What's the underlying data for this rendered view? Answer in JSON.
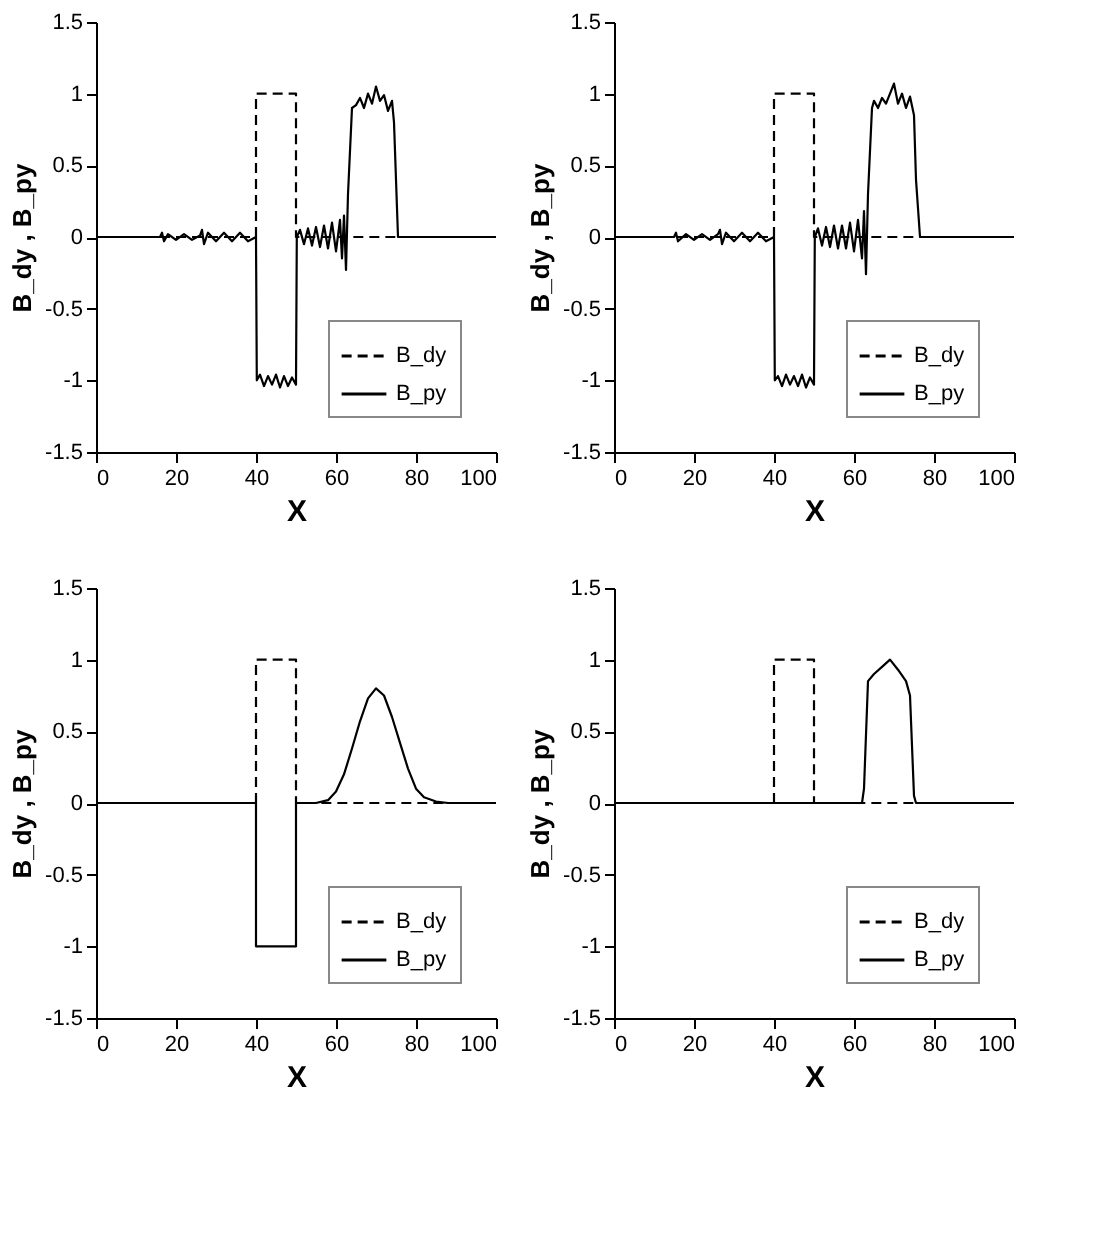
{
  "chart_data": [
    {
      "type": "line",
      "xlabel": "X",
      "ylabel": "B_dy , B_py",
      "xlim": [
        0,
        100
      ],
      "ylim": [
        -1.5,
        1.5
      ],
      "xticks": [
        0,
        20,
        40,
        60,
        80,
        100
      ],
      "yticks": [
        -1.5,
        -1,
        -0.5,
        0,
        0.5,
        1,
        1.5
      ],
      "grid": false,
      "legend": "bottom right",
      "series": [
        {
          "name": "B_dy",
          "color": "#000000",
          "line_style": "dashed",
          "x": [
            0,
            40,
            40,
            50,
            50,
            100
          ],
          "values": [
            0,
            0,
            1,
            1,
            0,
            0
          ]
        },
        {
          "name": "B_py",
          "color": "#000000",
          "line_style": "solid",
          "x": [
            0,
            16,
            16.5,
            17,
            18,
            20,
            22,
            24,
            26,
            26.5,
            27,
            28,
            30,
            32,
            34,
            36,
            38,
            40,
            40.2,
            41,
            42,
            43,
            44,
            45,
            46,
            47,
            48,
            49,
            50,
            50.2,
            51,
            52,
            53,
            54,
            55,
            56,
            57,
            58,
            59,
            60,
            61,
            61.5,
            62,
            62.5,
            63,
            64,
            65,
            66,
            67,
            68,
            69,
            70,
            71,
            72,
            73,
            74,
            74.5,
            75.5,
            100
          ],
          "values": [
            0,
            0,
            0.03,
            -0.03,
            0.02,
            -0.02,
            0.02,
            -0.02,
            0.01,
            0.05,
            -0.05,
            0.03,
            -0.03,
            0.03,
            -0.03,
            0.03,
            -0.03,
            0,
            -1,
            -0.96,
            -1.04,
            -0.97,
            -1.03,
            -0.96,
            -1.05,
            -0.97,
            -1.04,
            -0.98,
            -1.03,
            0,
            0.05,
            -0.05,
            0.06,
            -0.06,
            0.07,
            -0.07,
            0.08,
            -0.08,
            0.1,
            -0.1,
            0.12,
            -0.15,
            0.15,
            -0.23,
            0.3,
            0.9,
            0.92,
            0.97,
            0.9,
            1.0,
            0.93,
            1.05,
            0.95,
            0.99,
            0.88,
            0.95,
            0.8,
            0,
            0
          ]
        }
      ]
    },
    {
      "type": "line",
      "xlabel": "X",
      "ylabel": "B_dy , B_py",
      "xlim": [
        0,
        100
      ],
      "ylim": [
        -1.5,
        1.5
      ],
      "xticks": [
        0,
        20,
        40,
        60,
        80,
        100
      ],
      "yticks": [
        -1.5,
        -1,
        -0.5,
        0,
        0.5,
        1,
        1.5
      ],
      "grid": false,
      "legend": "bottom right",
      "series": [
        {
          "name": "B_dy",
          "color": "#000000",
          "line_style": "dashed",
          "x": [
            0,
            40,
            40,
            50,
            50,
            100
          ],
          "values": [
            0,
            0,
            1,
            1,
            0,
            0
          ]
        },
        {
          "name": "B_py",
          "color": "#000000",
          "line_style": "solid",
          "x": [
            0,
            15,
            15.5,
            16,
            18,
            20,
            22,
            24,
            26,
            26.5,
            27,
            28,
            30,
            32,
            34,
            36,
            38,
            40,
            40.2,
            41,
            42,
            43,
            44,
            45,
            46,
            47,
            48,
            49,
            50,
            50.2,
            51,
            52,
            53,
            54,
            55,
            56,
            57,
            58,
            59,
            60,
            61,
            62,
            62.5,
            63,
            63.5,
            64.5,
            65,
            66,
            67,
            68,
            69,
            70,
            71,
            72,
            73,
            74,
            75,
            75.5,
            76.5,
            100
          ],
          "values": [
            0,
            0,
            0.03,
            -0.03,
            0.02,
            -0.02,
            0.02,
            -0.02,
            0.02,
            0.05,
            -0.05,
            0.03,
            -0.03,
            0.03,
            -0.03,
            0.03,
            -0.03,
            0,
            -1,
            -0.97,
            -1.04,
            -0.96,
            -1.03,
            -0.97,
            -1.04,
            -0.96,
            -1.05,
            -0.98,
            -1.03,
            0,
            0.06,
            -0.06,
            0.07,
            -0.07,
            0.08,
            -0.08,
            0.08,
            -0.08,
            0.1,
            -0.1,
            0.12,
            -0.15,
            0.18,
            -0.26,
            0.3,
            0.9,
            0.95,
            0.9,
            0.97,
            0.93,
            1.0,
            1.07,
            0.93,
            1.0,
            0.9,
            0.98,
            0.85,
            0.4,
            0,
            0
          ]
        }
      ]
    },
    {
      "type": "line",
      "xlabel": "X",
      "ylabel": "B_dy , B_py",
      "xlim": [
        0,
        100
      ],
      "ylim": [
        -1.5,
        1.5
      ],
      "xticks": [
        0,
        20,
        40,
        60,
        80,
        100
      ],
      "yticks": [
        -1.5,
        -1,
        -0.5,
        0,
        0.5,
        1,
        1.5
      ],
      "grid": false,
      "legend": "bottom right",
      "series": [
        {
          "name": "B_dy",
          "color": "#000000",
          "line_style": "dashed",
          "x": [
            0,
            40,
            40,
            50,
            50,
            100
          ],
          "values": [
            0,
            0,
            1,
            1,
            0,
            0
          ]
        },
        {
          "name": "B_py",
          "color": "#000000",
          "line_style": "solid",
          "x": [
            0,
            40,
            40,
            50,
            50,
            55,
            58,
            60,
            62,
            64,
            66,
            68,
            70,
            72,
            74,
            76,
            78,
            80,
            82,
            85,
            88,
            100
          ],
          "values": [
            0,
            0,
            -1,
            -1,
            0,
            0,
            0.02,
            0.08,
            0.2,
            0.38,
            0.57,
            0.73,
            0.8,
            0.75,
            0.6,
            0.42,
            0.24,
            0.1,
            0.04,
            0.01,
            0,
            0
          ]
        }
      ]
    },
    {
      "type": "line",
      "xlabel": "X",
      "ylabel": "B_dy , B_py",
      "xlim": [
        0,
        100
      ],
      "ylim": [
        -1.5,
        1.5
      ],
      "xticks": [
        0,
        20,
        40,
        60,
        80,
        100
      ],
      "yticks": [
        -1.5,
        -1,
        -0.5,
        0,
        0.5,
        1,
        1.5
      ],
      "grid": false,
      "legend": "bottom right",
      "series": [
        {
          "name": "B_dy",
          "color": "#000000",
          "line_style": "dashed",
          "x": [
            0,
            40,
            40,
            50,
            50,
            100
          ],
          "values": [
            0,
            0,
            1,
            1,
            0,
            0
          ]
        },
        {
          "name": "B_py",
          "color": "#000000",
          "line_style": "solid",
          "x": [
            0,
            62,
            62.5,
            63.5,
            65,
            67,
            69,
            71,
            73,
            74,
            75,
            75.5,
            100
          ],
          "values": [
            0,
            0,
            0.1,
            0.85,
            0.9,
            0.95,
            1.0,
            0.93,
            0.85,
            0.75,
            0.05,
            0,
            0
          ]
        }
      ]
    }
  ]
}
